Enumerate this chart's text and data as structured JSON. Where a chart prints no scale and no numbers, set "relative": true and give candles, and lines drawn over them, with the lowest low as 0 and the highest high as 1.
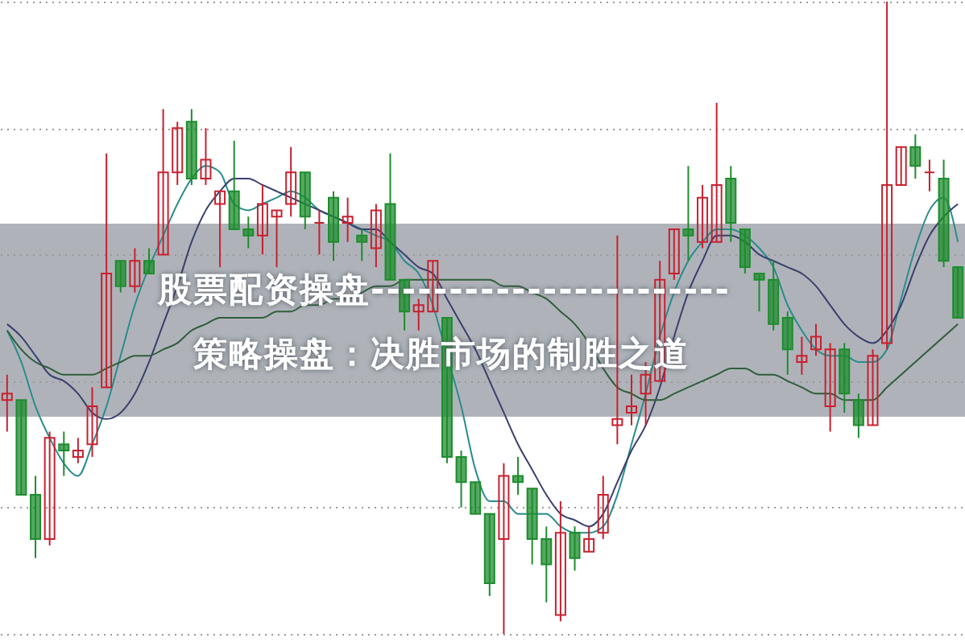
{
  "chart_data": {
    "type": "candlestick",
    "title": "股票配资操盘-----------------------",
    "subtitle": "策略操盘：决胜市场的制胜之道",
    "relative": true,
    "grid": "y",
    "categories": [
      null,
      null,
      null,
      null,
      null,
      null,
      null,
      null,
      null,
      null,
      null,
      null,
      null,
      null,
      null,
      null,
      null,
      null,
      null,
      null,
      null,
      null,
      null,
      null,
      null,
      null,
      null,
      null,
      null,
      null,
      null,
      null,
      null,
      null,
      null,
      null,
      null,
      null,
      null,
      null,
      null,
      null,
      null,
      null,
      null,
      null,
      null,
      null,
      null,
      null,
      null,
      null,
      null,
      null,
      null,
      null,
      null,
      null,
      null,
      null,
      null,
      null,
      null,
      null,
      null,
      null,
      null,
      null
    ],
    "ohlc": [
      [
        0.37,
        0.41,
        0.32,
        0.38
      ],
      [
        0.37,
        0.37,
        0.22,
        0.22
      ],
      [
        0.22,
        0.25,
        0.12,
        0.15
      ],
      [
        0.15,
        0.32,
        0.14,
        0.31
      ],
      [
        0.3,
        0.32,
        0.25,
        0.29
      ],
      [
        0.28,
        0.31,
        0.27,
        0.29
      ],
      [
        0.3,
        0.39,
        0.28,
        0.36
      ],
      [
        0.39,
        0.76,
        0.39,
        0.57
      ],
      [
        0.59,
        0.59,
        0.54,
        0.55
      ],
      [
        0.55,
        0.61,
        0.54,
        0.59
      ],
      [
        0.59,
        0.61,
        0.57,
        0.57
      ],
      [
        0.6,
        0.83,
        0.6,
        0.73
      ],
      [
        0.73,
        0.81,
        0.71,
        0.8
      ],
      [
        0.81,
        0.83,
        0.71,
        0.72
      ],
      [
        0.72,
        0.8,
        0.71,
        0.75
      ],
      [
        0.68,
        0.7,
        0.58,
        0.7
      ],
      [
        0.7,
        0.78,
        0.64,
        0.64
      ],
      [
        0.64,
        0.66,
        0.61,
        0.63
      ],
      [
        0.63,
        0.71,
        0.6,
        0.68
      ],
      [
        0.66,
        0.67,
        0.58,
        0.67
      ],
      [
        0.68,
        0.77,
        0.66,
        0.73
      ],
      [
        0.73,
        0.73,
        0.64,
        0.66
      ],
      [
        0.65,
        0.67,
        0.6,
        0.65
      ],
      [
        0.69,
        0.7,
        0.59,
        0.62
      ],
      [
        0.65,
        0.69,
        0.62,
        0.66
      ],
      [
        0.63,
        0.64,
        0.59,
        0.62
      ],
      [
        0.61,
        0.68,
        0.58,
        0.67
      ],
      [
        0.68,
        0.76,
        0.56,
        0.56
      ],
      [
        0.56,
        0.56,
        0.48,
        0.51
      ],
      [
        0.51,
        0.53,
        0.48,
        0.52
      ],
      [
        0.51,
        0.59,
        0.51,
        0.59
      ],
      [
        0.5,
        0.5,
        0.27,
        0.28
      ],
      [
        0.28,
        0.29,
        0.2,
        0.24
      ],
      [
        0.24,
        0.24,
        0.19,
        0.19
      ],
      [
        0.19,
        0.19,
        0.06,
        0.08
      ],
      [
        0.15,
        0.27,
        0,
        0.25
      ],
      [
        0.25,
        0.28,
        0.22,
        0.24
      ],
      [
        0.23,
        0.23,
        0.11,
        0.15
      ],
      [
        0.15,
        0.17,
        0.05,
        0.11
      ],
      [
        0.03,
        0.21,
        0.02,
        0.16
      ],
      [
        0.16,
        0.17,
        0.1,
        0.12
      ],
      [
        0.13,
        0.17,
        0.13,
        0.15
      ],
      [
        0.16,
        0.25,
        0.15,
        0.22
      ],
      [
        0.33,
        0.63,
        0.3,
        0.34
      ],
      [
        0.35,
        0.41,
        0.33,
        0.36
      ],
      [
        0.38,
        0.43,
        0.33,
        0.41
      ],
      [
        0.4,
        0.59,
        0.4,
        0.56
      ],
      [
        0.57,
        0.64,
        0.56,
        0.64
      ],
      [
        0.64,
        0.74,
        0.59,
        0.63
      ],
      [
        0.62,
        0.71,
        0.61,
        0.69
      ],
      [
        0.62,
        0.84,
        0.62,
        0.71
      ],
      [
        0.72,
        0.74,
        0.62,
        0.65
      ],
      [
        0.64,
        0.64,
        0.57,
        0.58
      ],
      [
        0.57,
        0.57,
        0.51,
        0.56
      ],
      [
        0.56,
        0.59,
        0.48,
        0.49
      ],
      [
        0.5,
        0.51,
        0.41,
        0.45
      ],
      [
        0.43,
        0.47,
        0.41,
        0.44
      ],
      [
        0.45,
        0.49,
        0.44,
        0.47
      ],
      [
        0.36,
        0.46,
        0.32,
        0.45
      ],
      [
        0.45,
        0.46,
        0.35,
        0.38
      ],
      [
        0.37,
        0.38,
        0.31,
        0.33
      ],
      [
        0.33,
        0.45,
        0.33,
        0.44
      ],
      [
        0.46,
        1,
        0.45,
        0.71
      ],
      [
        0.71,
        0.77,
        0.71,
        0.77
      ],
      [
        0.77,
        0.79,
        0.72,
        0.74
      ],
      [
        0.73,
        0.75,
        0.7,
        0.73
      ],
      [
        0.72,
        0.75,
        0.58,
        0.59
      ],
      [
        0.58,
        0.58,
        0.5,
        0.5
      ]
    ],
    "series": [
      {
        "type": "line",
        "color": "#2a8c8c",
        "values": [
          0.48,
          0.43,
          0.36,
          0.31,
          0.27,
          0.25,
          0.3,
          0.36,
          0.44,
          0.52,
          0.58,
          0.63,
          0.68,
          0.72,
          0.74,
          0.73,
          0.68,
          0.67,
          0.68,
          0.69,
          0.7,
          0.69,
          0.67,
          0.66,
          0.65,
          0.64,
          0.63,
          0.62,
          0.59,
          0.57,
          0.52,
          0.44,
          0.36,
          0.26,
          0.21,
          0.21,
          0.19,
          0.19,
          0.19,
          0.17,
          0.16,
          0.16,
          0.17,
          0.22,
          0.3,
          0.38,
          0.47,
          0.54,
          0.59,
          0.62,
          0.64,
          0.64,
          0.63,
          0.61,
          0.58,
          0.52,
          0.48,
          0.45,
          0.44,
          0.44,
          0.43,
          0.43,
          0.45,
          0.53,
          0.61,
          0.67,
          0.69,
          0.62
        ]
      },
      {
        "type": "line",
        "color": "#3a3f6e",
        "values": [
          0.49,
          0.47,
          0.44,
          0.41,
          0.4,
          0.38,
          0.35,
          0.34,
          0.35,
          0.38,
          0.43,
          0.49,
          0.55,
          0.62,
          0.67,
          0.7,
          0.72,
          0.72,
          0.71,
          0.7,
          0.69,
          0.68,
          0.67,
          0.66,
          0.65,
          0.64,
          0.64,
          0.62,
          0.6,
          0.58,
          0.57,
          0.53,
          0.49,
          0.45,
          0.4,
          0.35,
          0.3,
          0.26,
          0.22,
          0.19,
          0.18,
          0.17,
          0.19,
          0.24,
          0.29,
          0.33,
          0.39,
          0.47,
          0.54,
          0.59,
          0.63,
          0.63,
          0.62,
          0.6,
          0.59,
          0.58,
          0.57,
          0.55,
          0.52,
          0.49,
          0.47,
          0.46,
          0.48,
          0.52,
          0.58,
          0.63,
          0.66,
          0.68
        ]
      },
      {
        "type": "line",
        "color": "#2f5e3a",
        "values": [
          0.48,
          0.45,
          0.43,
          0.42,
          0.41,
          0.41,
          0.41,
          0.42,
          0.43,
          0.44,
          0.44,
          0.45,
          0.46,
          0.48,
          0.49,
          0.5,
          0.5,
          0.5,
          0.5,
          0.51,
          0.51,
          0.52,
          0.52,
          0.53,
          0.53,
          0.54,
          0.55,
          0.55,
          0.56,
          0.56,
          0.56,
          0.56,
          0.56,
          0.56,
          0.56,
          0.55,
          0.55,
          0.54,
          0.53,
          0.51,
          0.49,
          0.46,
          0.42,
          0.39,
          0.38,
          0.37,
          0.37,
          0.38,
          0.39,
          0.4,
          0.41,
          0.42,
          0.42,
          0.41,
          0.41,
          0.4,
          0.39,
          0.38,
          0.38,
          0.37,
          0.37,
          0.37,
          0.39,
          0.41,
          0.43,
          0.45,
          0.47,
          0.49
        ]
      }
    ]
  }
}
